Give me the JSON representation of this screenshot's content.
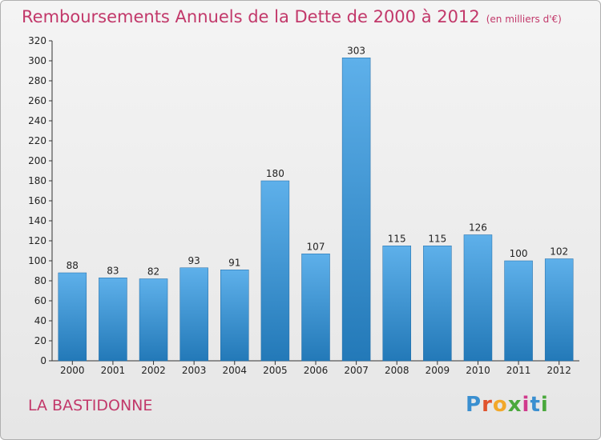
{
  "header": {
    "title": "Remboursements Annuels de la Dette de 2000 à 2012",
    "unit": "(en milliers d'€)"
  },
  "footer": {
    "commune": "LA BASTIDONNE",
    "logo_letters": [
      "P",
      "r",
      "o",
      "x",
      "i",
      "t",
      "i"
    ],
    "logo_colors": [
      "#3a8fd0",
      "#e0522d",
      "#f2a82a",
      "#4aa83c",
      "#d03a8c",
      "#3a8fd0",
      "#4aa83c"
    ]
  },
  "colors": {
    "accent": "#c2386a",
    "bar_top": "#5eb0ea",
    "bar_bottom": "#2379b8"
  },
  "chart_data": {
    "type": "bar",
    "title": "Remboursements Annuels de la Dette de 2000 à 2012",
    "subtitle": "(en milliers d'€)",
    "categories": [
      "2000",
      "2001",
      "2002",
      "2003",
      "2004",
      "2005",
      "2006",
      "2007",
      "2008",
      "2009",
      "2010",
      "2011",
      "2012"
    ],
    "values": [
      88,
      83,
      82,
      93,
      91,
      180,
      107,
      303,
      115,
      115,
      126,
      100,
      102
    ],
    "ylim": [
      0,
      320
    ],
    "yticks": [
      0,
      20,
      40,
      60,
      80,
      100,
      120,
      140,
      160,
      180,
      200,
      220,
      240,
      260,
      280,
      300,
      320
    ],
    "xlabel": "",
    "ylabel": "",
    "grid": false,
    "legend": "none"
  }
}
